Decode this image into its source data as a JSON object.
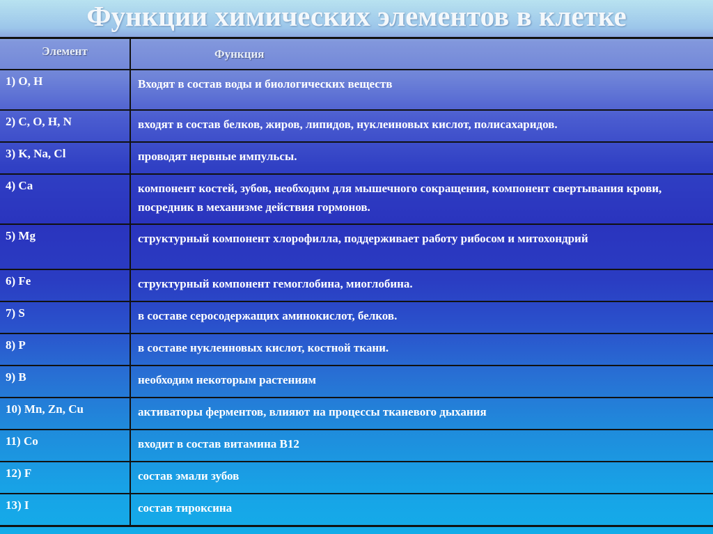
{
  "title": "Функции химических элементов в клетке",
  "table": {
    "headers": [
      "Элемент",
      "Функция"
    ],
    "rows": [
      {
        "element": "1) O, H",
        "function": "Входят в состав воды и биологических веществ"
      },
      {
        "element": "2) C, O, H, N",
        "function": "входят в состав белков, жиров, липидов, нуклеиновых кислот, полисахаридов."
      },
      {
        "element": "3) K, Na, Cl",
        "function": "проводят нервные импульсы."
      },
      {
        "element": "4) Ca",
        "function": "компонент костей, зубов, необходим для мышечного сокращения, компонент свертывания крови, посредник в механизме действия гормонов."
      },
      {
        "element": "5) Mg",
        "function": "структурный компонент  хлорофилла, поддерживает работу рибосом и митохондрий"
      },
      {
        "element": "6) Fe",
        "function": "структурный компонент гемоглобина, миоглобина."
      },
      {
        "element": "7) S",
        "function": "в составе серосодержащих аминокислот, белков."
      },
      {
        "element": "8) P",
        "function": "в составе нуклеиновых кислот, костной ткани."
      },
      {
        "element": "9) B",
        "function": "необходим некоторым растениям"
      },
      {
        "element": "10) Mn, Zn, Cu",
        "function": "активаторы ферментов, влияют на процессы тканевого дыхания"
      },
      {
        "element": "11) Co",
        "function": "входит в состав витамина В12"
      },
      {
        "element": "12) F",
        "function": "состав эмали зубов"
      },
      {
        "element": "13) I",
        "function": "состав тироксина"
      }
    ]
  }
}
